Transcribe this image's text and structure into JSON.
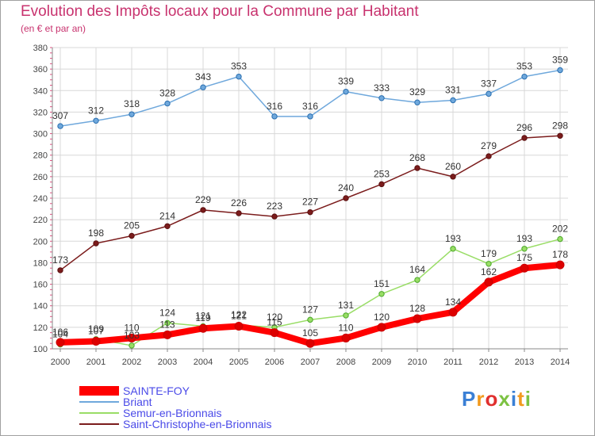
{
  "title": "Evolution des Impôts locaux pour la Commune par Habitant",
  "subtitle": "(en € et par an)",
  "logo_text": "Proxiti",
  "chart_data": {
    "type": "line",
    "title": "Evolution des Impôts locaux pour la Commune par Habitant",
    "subtitle": "(en € et par an)",
    "x": [
      "2000",
      "2001",
      "2002",
      "2003",
      "2004",
      "2005",
      "2006",
      "2007",
      "2008",
      "2009",
      "2010",
      "2011",
      "2012",
      "2013",
      "2014"
    ],
    "ylim": [
      100,
      380
    ],
    "yticks": [
      100,
      120,
      140,
      160,
      180,
      200,
      220,
      240,
      260,
      280,
      300,
      320,
      340,
      360,
      380
    ],
    "grid": true,
    "legend_position": "bottom-left",
    "series": [
      {
        "name": "SAINTE-FOY",
        "color": "#ff0000",
        "values": [
          106,
          107,
          110,
          113,
          119,
          121,
          115,
          105,
          110,
          120,
          128,
          134,
          162,
          175,
          178
        ]
      },
      {
        "name": "Briant",
        "color": "#6fa8dc",
        "values": [
          307,
          312,
          318,
          328,
          343,
          353,
          316,
          316,
          339,
          333,
          329,
          331,
          337,
          353,
          359
        ]
      },
      {
        "name": "Semur-en-Brionnais",
        "color": "#99dd66",
        "values": [
          104,
          109,
          103,
          124,
          121,
          122,
          120,
          127,
          131,
          151,
          164,
          193,
          179,
          193,
          202
        ]
      },
      {
        "name": "Saint-Christophe-en-Brionnais",
        "color": "#7b1c1c",
        "values": [
          173,
          198,
          205,
          214,
          229,
          226,
          223,
          227,
          240,
          253,
          268,
          260,
          279,
          296,
          298
        ]
      }
    ]
  }
}
